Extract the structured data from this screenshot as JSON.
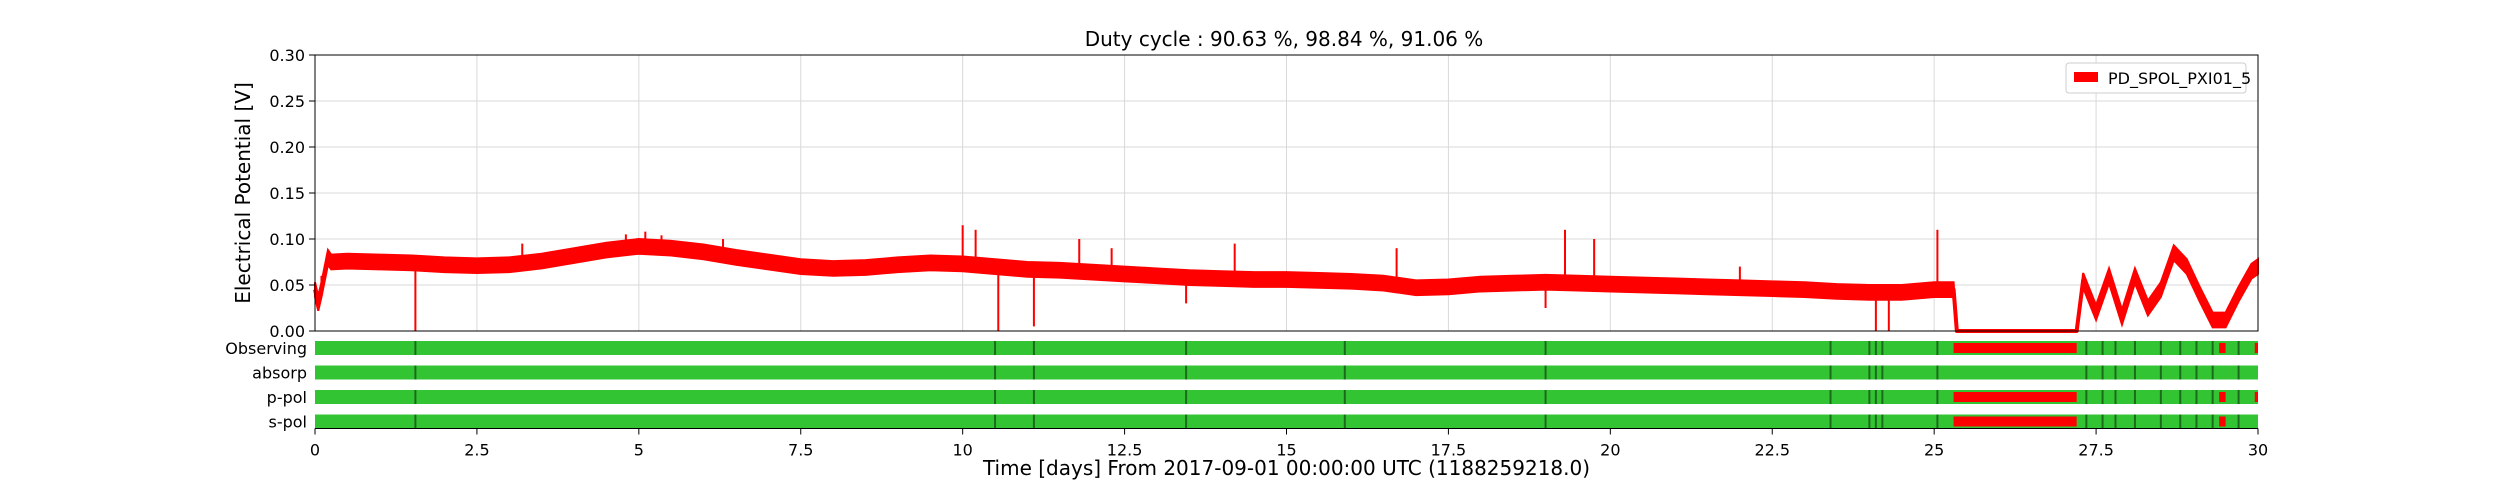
{
  "figure": {
    "title": "Duty cycle : 90.63 %, 98.84 %, 91.06 %"
  },
  "chart_data": {
    "type": "line",
    "title": "Duty cycle : 90.63 %, 98.84 %, 91.06 %",
    "xlabel": "Time [days] From 2017-09-01 00:00:00 UTC (1188259218.0)",
    "ylabel": "Electrical Potential [V]",
    "xlim": [
      0,
      30
    ],
    "ylim": [
      0,
      0.3
    ],
    "x_ticks": [
      "0",
      "2.5",
      "5",
      "7.5",
      "10",
      "12.5",
      "15",
      "17.5",
      "20",
      "22.5",
      "25",
      "27.5",
      "30"
    ],
    "y_ticks": [
      "0.00",
      "0.05",
      "0.10",
      "0.15",
      "0.20",
      "0.25",
      "0.30"
    ],
    "grid": true,
    "legend": {
      "position": "top-right",
      "entries": [
        "PD_SPOL_PXI01_5"
      ]
    },
    "series": [
      {
        "name": "PD_SPOL_PXI01_5",
        "color": "#ff0000",
        "x": [
          0.0,
          0.05,
          0.1,
          0.2,
          0.25,
          0.5,
          1.0,
          1.5,
          2.0,
          2.5,
          3.0,
          3.5,
          4.0,
          4.5,
          5.0,
          5.5,
          6.0,
          6.5,
          7.0,
          7.5,
          8.0,
          8.5,
          9.0,
          9.5,
          10.0,
          10.5,
          11.0,
          11.5,
          12.0,
          12.5,
          13.0,
          13.5,
          14.0,
          14.5,
          15.0,
          15.5,
          16.0,
          16.5,
          17.0,
          17.5,
          18.0,
          18.5,
          19.0,
          19.5,
          20.0,
          20.5,
          21.0,
          21.5,
          22.0,
          22.5,
          23.0,
          23.5,
          24.0,
          24.5,
          25.0,
          25.3,
          25.35,
          27.2,
          27.3,
          27.5,
          27.7,
          27.9,
          28.1,
          28.3,
          28.5,
          28.7,
          28.9,
          29.1,
          29.3,
          29.5,
          29.7,
          29.9,
          30.0
        ],
        "y": [
          0.045,
          0.03,
          0.045,
          0.08,
          0.075,
          0.076,
          0.075,
          0.074,
          0.072,
          0.071,
          0.072,
          0.076,
          0.082,
          0.088,
          0.092,
          0.09,
          0.086,
          0.08,
          0.075,
          0.07,
          0.068,
          0.069,
          0.072,
          0.074,
          0.073,
          0.07,
          0.067,
          0.066,
          0.064,
          0.062,
          0.06,
          0.058,
          0.057,
          0.056,
          0.056,
          0.055,
          0.054,
          0.052,
          0.047,
          0.048,
          0.051,
          0.052,
          0.053,
          0.052,
          0.051,
          0.05,
          0.049,
          0.048,
          0.047,
          0.046,
          0.045,
          0.043,
          0.042,
          0.042,
          0.045,
          0.045,
          0.0,
          0.0,
          0.055,
          0.02,
          0.06,
          0.015,
          0.06,
          0.025,
          0.045,
          0.085,
          0.07,
          0.04,
          0.012,
          0.012,
          0.04,
          0.065,
          0.07
        ]
      }
    ],
    "segments": {
      "rows": [
        "Observing",
        "absorp",
        "p-pol",
        "s-pol"
      ],
      "active_color": "#33c433",
      "inactive_color": "#ff0000",
      "off": [
        [
          [
            25.3,
            27.2
          ],
          [
            29.4,
            29.5
          ],
          [
            29.95,
            30.0
          ]
        ],
        [],
        [
          [
            25.3,
            27.2
          ],
          [
            29.4,
            29.5
          ],
          [
            29.95,
            30.0
          ]
        ],
        [
          [
            25.3,
            27.2
          ],
          [
            29.4,
            29.5
          ]
        ]
      ],
      "gaps": [
        1.55,
        10.5,
        11.1,
        13.45,
        15.9,
        19.0,
        23.4,
        24.0,
        24.1,
        24.2,
        25.05,
        27.35,
        27.6,
        27.8,
        28.1,
        28.5,
        28.8,
        29.05,
        29.3,
        29.7
      ]
    }
  }
}
